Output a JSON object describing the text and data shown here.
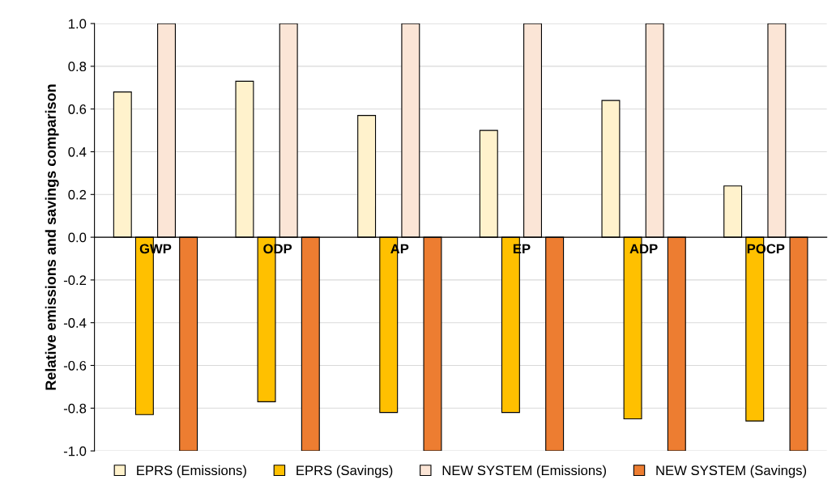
{
  "chart_data": {
    "type": "bar",
    "ylabel": "Relative emissions and savings comparison",
    "categories": [
      "GWP",
      "ODP",
      "AP",
      "EP",
      "ADP",
      "POCP"
    ],
    "series": [
      {
        "name": "EPRS (Emissions)",
        "color": "#fff2cc",
        "values": [
          0.68,
          0.73,
          0.57,
          0.5,
          0.64,
          0.24
        ]
      },
      {
        "name": "EPRS (Savings)",
        "color": "#ffc000",
        "values": [
          -0.83,
          -0.77,
          -0.82,
          -0.82,
          -0.85,
          -0.86
        ]
      },
      {
        "name": "NEW SYSTEM (Emissions)",
        "color": "#fbe5d6",
        "values": [
          1.0,
          1.0,
          1.0,
          1.0,
          1.0,
          1.0
        ]
      },
      {
        "name": "NEW SYSTEM (Savings)",
        "color": "#ed7d31",
        "values": [
          -1.0,
          -1.0,
          -1.0,
          -1.0,
          -1.0,
          -1.0
        ]
      }
    ],
    "ylim": [
      -1.0,
      1.0
    ],
    "yticks": [
      {
        "value": -1.0,
        "label": "-1.0"
      },
      {
        "value": -0.8,
        "label": "-0.8"
      },
      {
        "value": -0.6,
        "label": "-0.6"
      },
      {
        "value": -0.4,
        "label": "-0.4"
      },
      {
        "value": -0.2,
        "label": "-0.2"
      },
      {
        "value": 0.0,
        "label": "0.0"
      },
      {
        "value": 0.2,
        "label": "0.2"
      },
      {
        "value": 0.4,
        "label": "0.4"
      },
      {
        "value": 0.6,
        "label": "0.6"
      },
      {
        "value": 0.8,
        "label": "0.8"
      },
      {
        "value": 1.0,
        "label": "1.0"
      }
    ],
    "grid": "y",
    "legend": "bottom"
  }
}
